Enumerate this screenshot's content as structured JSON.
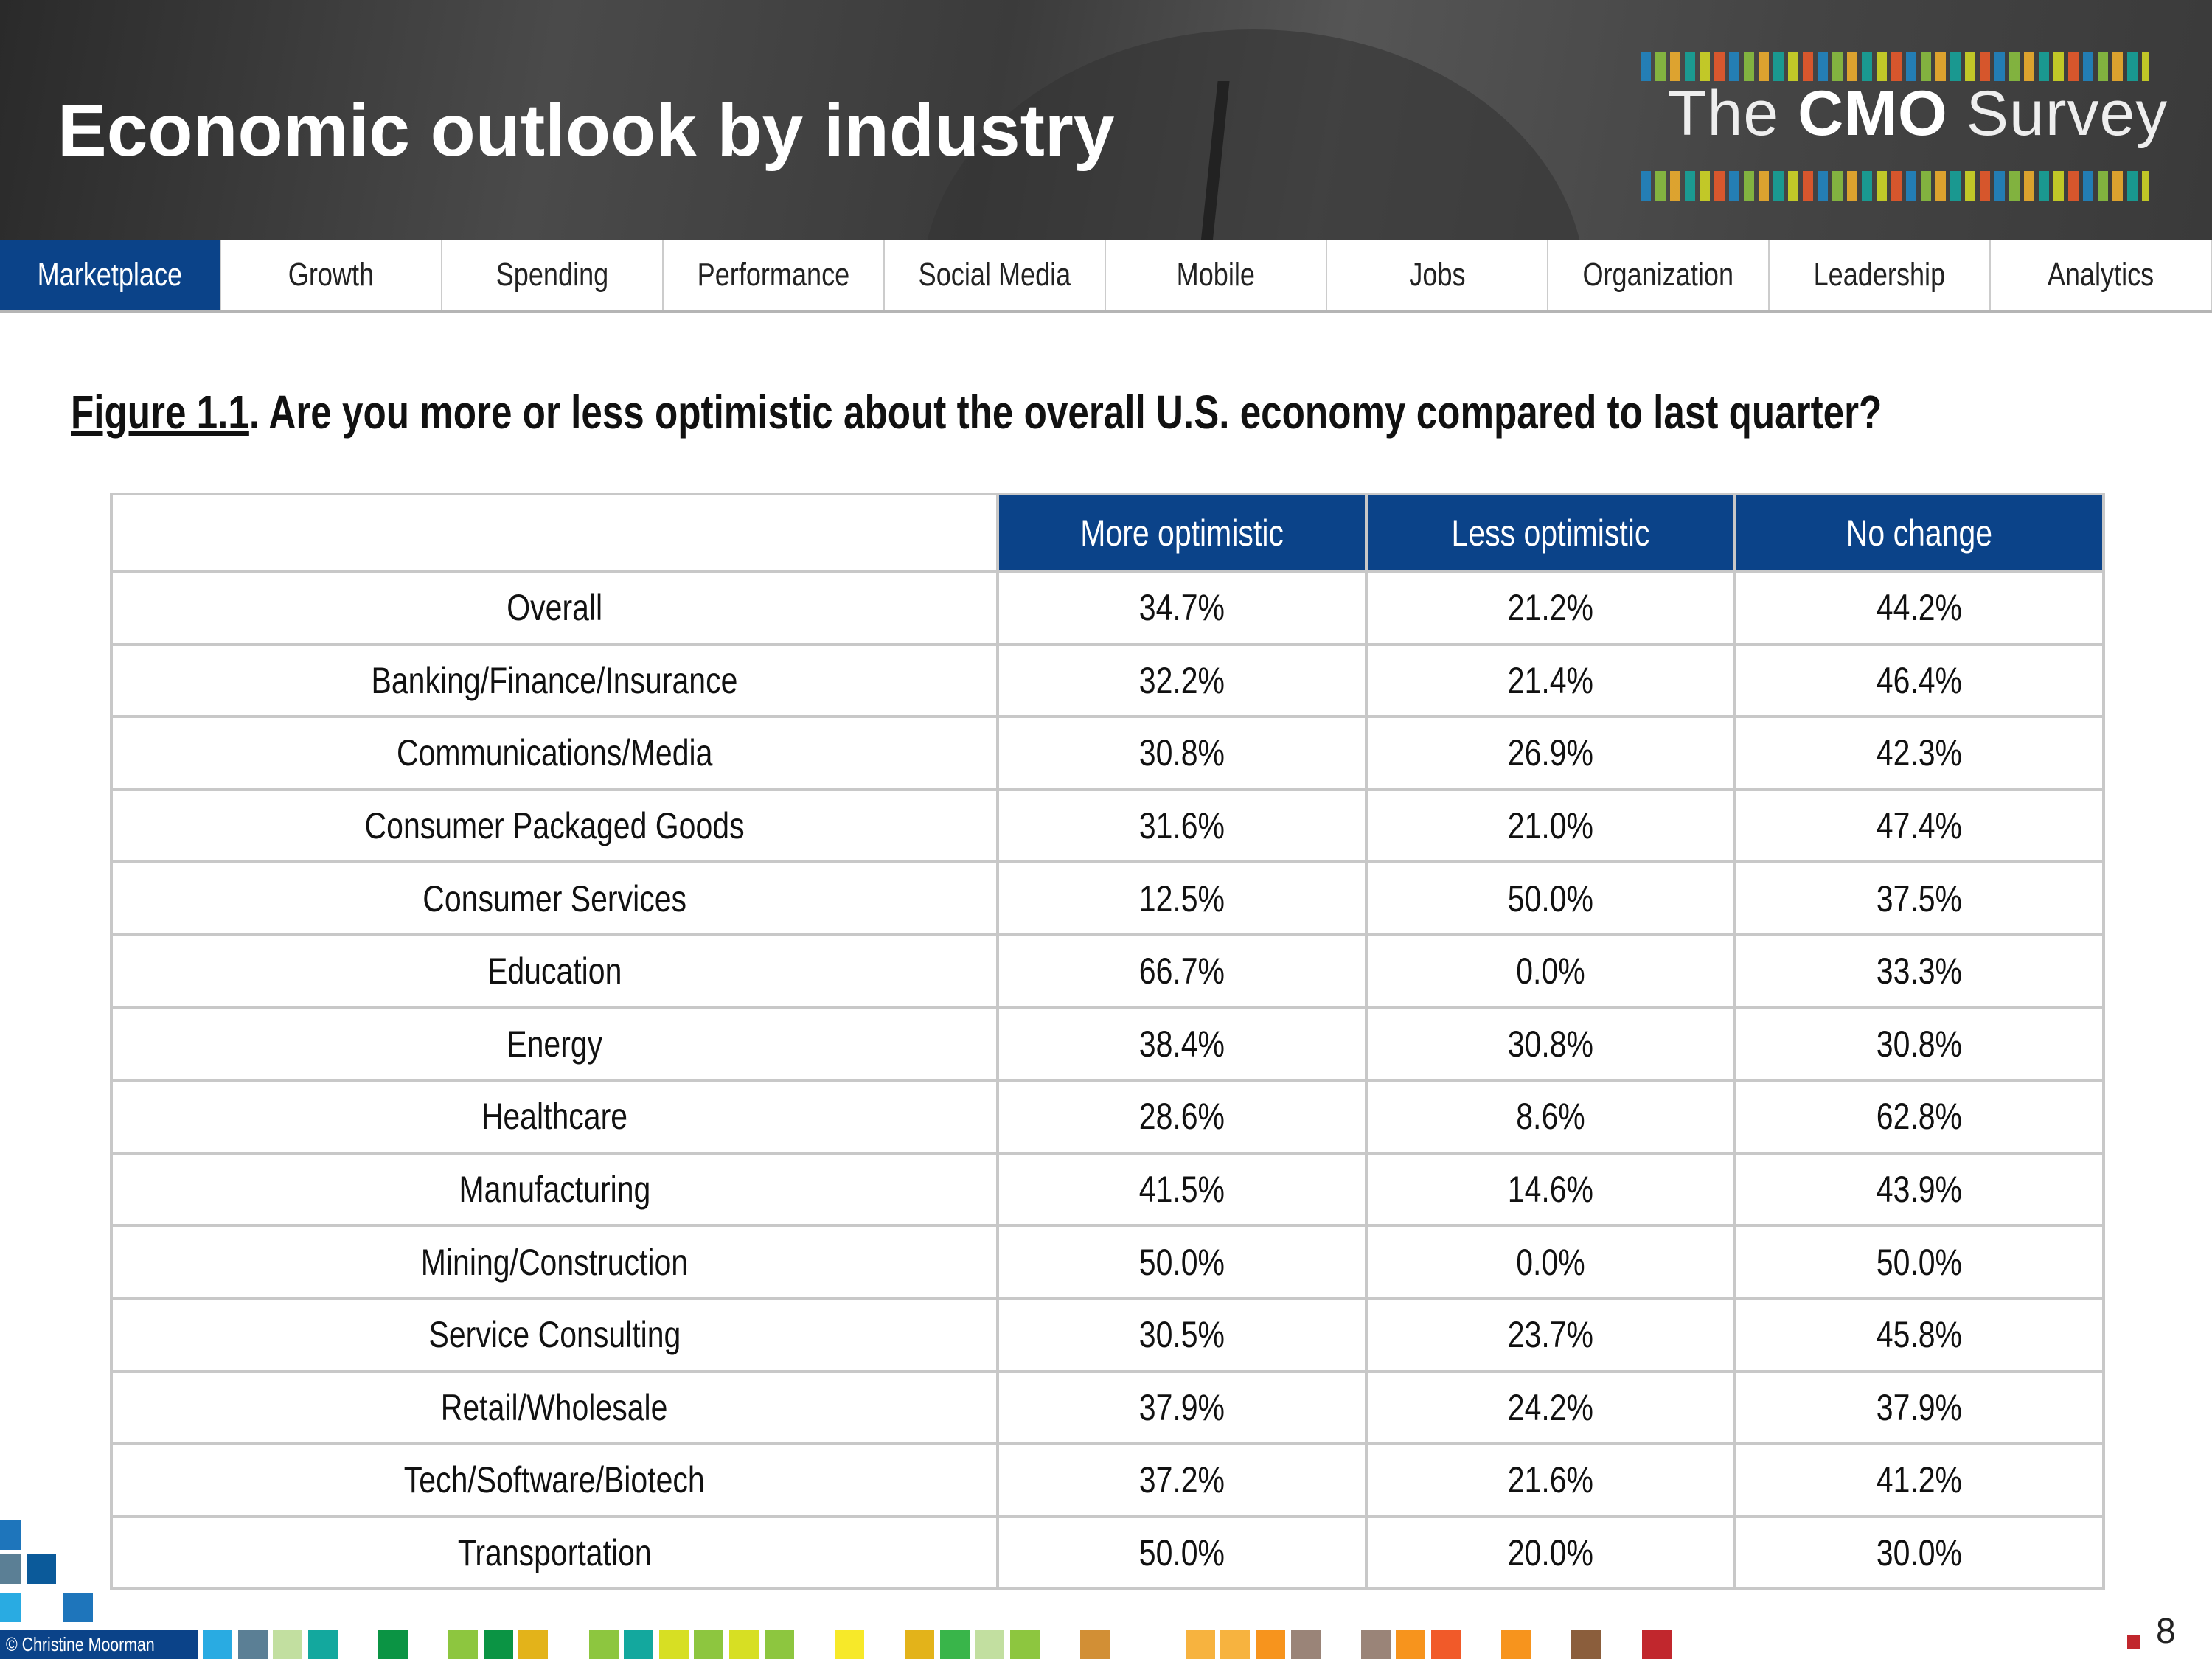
{
  "header": {
    "title": "Economic outlook by industry",
    "logo": {
      "pre": "The ",
      "bold": "CMO",
      "post": " Survey"
    }
  },
  "nav": {
    "tabs": [
      {
        "label": "Marketplace",
        "active": true
      },
      {
        "label": "Growth"
      },
      {
        "label": "Spending"
      },
      {
        "label": "Performance"
      },
      {
        "label": "Social Media"
      },
      {
        "label": "Mobile"
      },
      {
        "label": "Jobs"
      },
      {
        "label": "Organization"
      },
      {
        "label": "Leadership"
      },
      {
        "label": "Analytics"
      }
    ]
  },
  "figure": {
    "label": "Figure 1.1",
    "question": ".  Are you more or less optimistic about the overall U.S. economy compared to last quarter?"
  },
  "table": {
    "columns": [
      "More optimistic",
      "Less optimistic",
      "No change"
    ],
    "rows": [
      [
        "Overall",
        "34.7%",
        "21.2%",
        "44.2%"
      ],
      [
        "Banking/Finance/Insurance",
        "32.2%",
        "21.4%",
        "46.4%"
      ],
      [
        "Communications/Media",
        "30.8%",
        "26.9%",
        "42.3%"
      ],
      [
        "Consumer Packaged Goods",
        "31.6%",
        "21.0%",
        "47.4%"
      ],
      [
        "Consumer Services",
        "12.5%",
        "50.0%",
        "37.5%"
      ],
      [
        "Education",
        "66.7%",
        "0.0%",
        "33.3%"
      ],
      [
        "Energy",
        "38.4%",
        "30.8%",
        "30.8%"
      ],
      [
        "Healthcare",
        "28.6%",
        "8.6%",
        "62.8%"
      ],
      [
        "Manufacturing",
        "41.5%",
        "14.6%",
        "43.9%"
      ],
      [
        "Mining/Construction",
        "50.0%",
        "0.0%",
        "50.0%"
      ],
      [
        "Service Consulting",
        "30.5%",
        "23.7%",
        "45.8%"
      ],
      [
        "Retail/Wholesale",
        "37.9%",
        "24.2%",
        "37.9%"
      ],
      [
        "Tech/Software/Biotech",
        "37.2%",
        "21.6%",
        "41.2%"
      ],
      [
        "Transportation",
        "50.0%",
        "20.0%",
        "30.0%"
      ]
    ]
  },
  "footer": {
    "copyright": "© Christine Moorman",
    "page": "8",
    "colors": [
      "#29abe2",
      "#5b7f95",
      "#c2dfa0",
      "#13a89e",
      null,
      "#0b9444",
      null,
      "#8dc63f",
      "#0b9444",
      "#e3b31a",
      null,
      "#8dc63f",
      "#13a89e",
      "#d7df23",
      "#8dc63f",
      "#d7df23",
      "#8dc63f",
      null,
      "#f7e929",
      null,
      "#e3b31a",
      "#39b54a",
      "#c2dfa0",
      "#8dc63f",
      null,
      "#d28f35",
      null,
      null,
      "#f7b33f",
      "#f7b33f",
      "#f7941d",
      "#9a8478",
      null,
      "#9a8478",
      "#f7941d",
      "#f15a29",
      null,
      "#f7941d",
      null,
      "#8b5e3c",
      null,
      "#c1272d"
    ],
    "accent": "#0b4389"
  }
}
